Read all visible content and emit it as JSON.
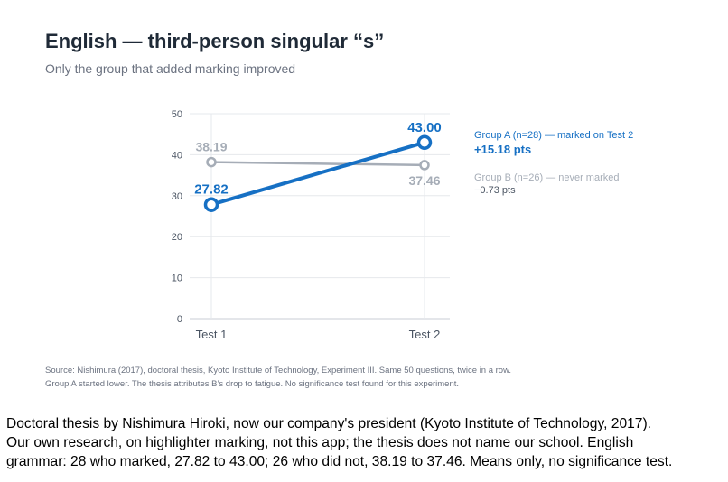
{
  "chart_data": {
    "type": "line",
    "title": "English — third-person singular “s”",
    "subtitle": "Only the group that added marking improved",
    "categories": [
      "Test 1",
      "Test 2"
    ],
    "ylim": [
      0,
      50
    ],
    "yticks": [
      "0",
      "10",
      "20",
      "30",
      "40",
      "50"
    ],
    "grid": true,
    "legend_position": "right",
    "series": [
      {
        "name": "Group A (n=28) — marked on Test 2",
        "values": [
          27.82,
          43.0
        ],
        "labels": [
          "27.82",
          "43.00"
        ],
        "delta": "+15.18 pts",
        "color": "#1670c4"
      },
      {
        "name": "Group B (n=26) — never marked",
        "values": [
          38.19,
          37.46
        ],
        "labels": [
          "38.19",
          "37.46"
        ],
        "delta": "−0.73 pts",
        "color": "#a6adb7"
      }
    ],
    "source_lines": [
      "Source: Nishimura (2017), doctoral thesis, Kyoto Institute of Technology, Experiment III. Same 50 questions, twice in a row.",
      "Group A started lower. The thesis attributes B’s drop to fatigue. No significance test found for this experiment."
    ]
  },
  "caption_lines": [
    "Doctoral thesis by Nishimura Hiroki, now our company's president (Kyoto Institute of Technology, 2017).",
    "Our own research, on highlighter marking, not this app; the thesis does not name our school. English",
    "grammar: 28 who marked, 27.82 to 43.00; 26 who did not, 38.19 to 37.46. Means only, no significance test."
  ]
}
